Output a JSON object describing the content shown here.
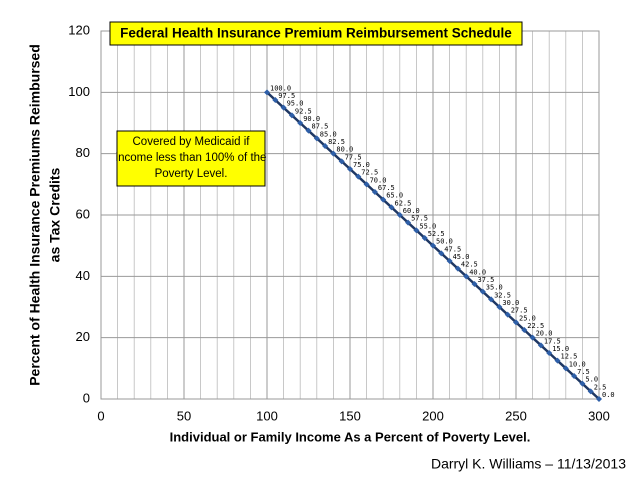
{
  "chart_data": {
    "type": "line",
    "title": "Federal Health Insurance Premium Reimbursement Schedule",
    "xlabel": "Individual or Family Income As a Percent of Poverty Level.",
    "ylabel": [
      "Percent of Health Insurance Premiums Reimbursed",
      "as Tax Credits"
    ],
    "annotation": [
      "Covered by Medicaid if",
      "income less than 100% of the",
      "Poverty Level."
    ],
    "credit": "Darryl K. Williams – 11/13/2013",
    "x": [
      100,
      105,
      110,
      115,
      120,
      125,
      130,
      135,
      140,
      145,
      150,
      155,
      160,
      165,
      170,
      175,
      180,
      185,
      190,
      195,
      200,
      205,
      210,
      215,
      220,
      225,
      230,
      235,
      240,
      245,
      250,
      255,
      260,
      265,
      270,
      275,
      280,
      285,
      290,
      295,
      300
    ],
    "values": [
      100,
      97.5,
      95,
      92.5,
      90,
      87.5,
      85,
      82.5,
      80,
      77.5,
      75,
      72.5,
      70,
      67.5,
      65,
      62.5,
      60,
      57.5,
      55,
      52.5,
      50,
      47.5,
      45,
      42.5,
      40,
      37.5,
      35,
      32.5,
      30,
      27.5,
      25,
      22.5,
      20,
      17.5,
      15,
      12.5,
      10,
      7.5,
      5,
      2.5,
      0
    ],
    "value_labels": [
      "100.0",
      "97.5",
      "95.0",
      "92.5",
      "90.0",
      "87.5",
      "85.0",
      "82.5",
      "80.0",
      "77.5",
      "75.0",
      "72.5",
      "70.0",
      "67.5",
      "65.0",
      "62.5",
      "60.0",
      "57.5",
      "55.0",
      "52.5",
      "50.0",
      "47.5",
      "45.0",
      "42.5",
      "40.0",
      "37.5",
      "35.0",
      "32.5",
      "30.0",
      "27.5",
      "25.0",
      "22.5",
      "20.0",
      "17.5",
      "15.0",
      "12.5",
      "10.0",
      "7.5",
      "5.0",
      "2.5",
      "0.0"
    ],
    "color": "#1f3864",
    "marker_color": "#2e5fa8",
    "xlim": [
      0,
      300
    ],
    "xticks": [
      0,
      50,
      100,
      150,
      200,
      250,
      300
    ],
    "x_minor_grid": [
      10,
      20,
      30,
      40,
      60,
      70,
      80,
      90,
      110,
      120,
      130,
      140,
      160,
      170,
      180,
      190,
      210,
      220,
      230,
      240,
      260,
      270,
      280,
      290
    ],
    "ylim": [
      0,
      120
    ],
    "yticks": [
      0,
      20,
      40,
      60,
      80,
      100,
      120
    ],
    "grid": true
  }
}
